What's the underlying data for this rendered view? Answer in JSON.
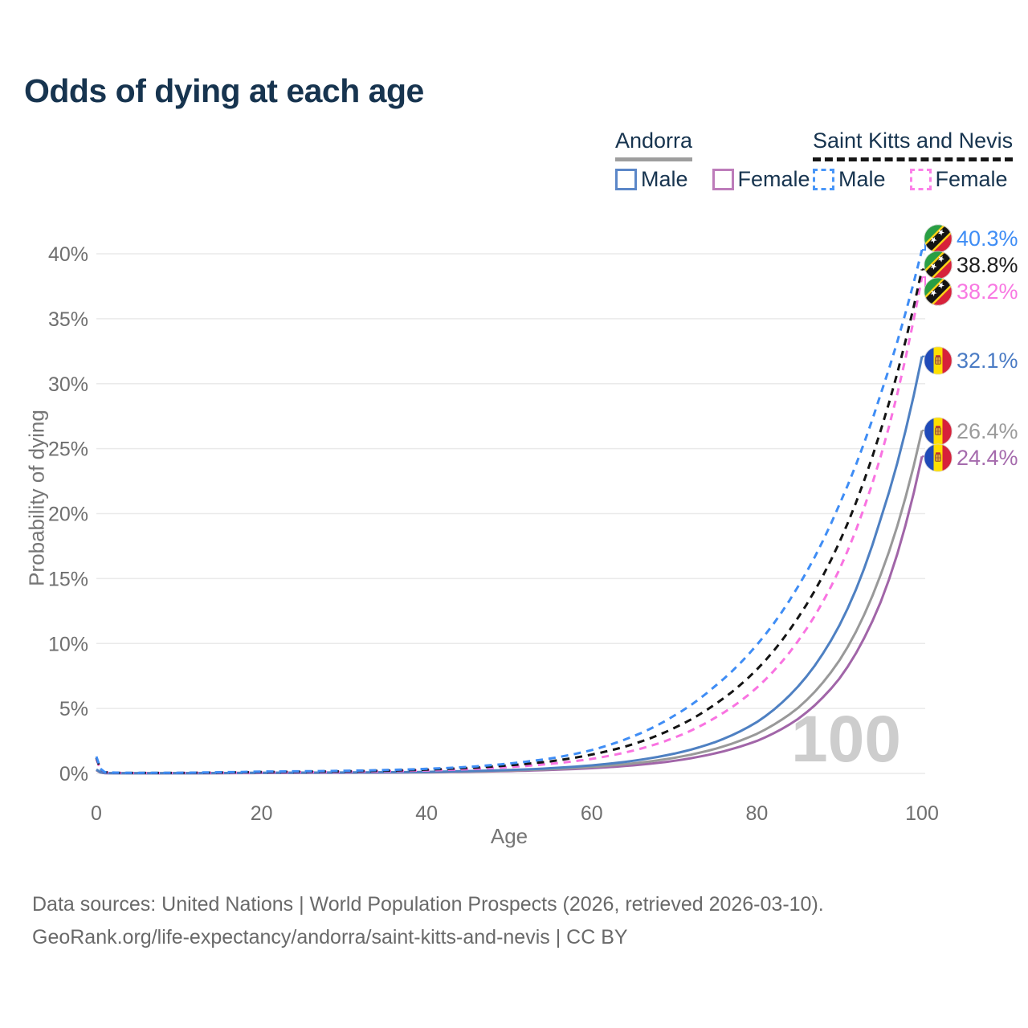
{
  "title": "Odds of dying at each age",
  "legend": {
    "groups": [
      {
        "country": "Andorra",
        "line_style": "solid",
        "underline_color": "#9e9e9e",
        "items": [
          {
            "label": "Male",
            "color": "#5b87c8"
          },
          {
            "label": "Female",
            "color": "#bd7cba"
          }
        ]
      },
      {
        "country": "Saint Kitts and Nevis",
        "line_style": "dashed",
        "underline_color": "#161616",
        "items": [
          {
            "label": "Male",
            "color": "#4896f8"
          },
          {
            "label": "Female",
            "color": "#fb80e8"
          }
        ]
      }
    ]
  },
  "chart_data": {
    "type": "line",
    "title": "Odds of dying at each age",
    "xlabel": "Age",
    "ylabel": "Probability of dying",
    "xlim": [
      0,
      100
    ],
    "ylim": [
      0,
      40
    ],
    "grid": "horizontal",
    "legend_position": "top-right",
    "watermark": "100",
    "xtick_values": [
      0,
      20,
      40,
      60,
      80,
      100
    ],
    "xtick_labels": [
      "0",
      "20",
      "40",
      "60",
      "80",
      "100"
    ],
    "ytick_values": [
      0,
      5,
      10,
      15,
      20,
      25,
      30,
      35,
      40
    ],
    "ytick_labels": [
      "0%",
      "5%",
      "10%",
      "15%",
      "20%",
      "25%",
      "30%",
      "35%",
      "40%"
    ],
    "series": [
      {
        "name": "Saint Kitts and Nevis — Male",
        "country": "Saint Kitts and Nevis",
        "sex": "Male",
        "color": "#3f8df5",
        "dashed": true,
        "end_label": "40.3%",
        "end_value": 40.3,
        "points": [
          [
            0,
            1.3
          ],
          [
            1,
            0.1
          ],
          [
            3,
            0.05
          ],
          [
            5,
            0.04
          ],
          [
            10,
            0.05
          ],
          [
            15,
            0.09
          ],
          [
            20,
            0.14
          ],
          [
            25,
            0.17
          ],
          [
            30,
            0.2
          ],
          [
            35,
            0.26
          ],
          [
            40,
            0.35
          ],
          [
            45,
            0.5
          ],
          [
            50,
            0.76
          ],
          [
            55,
            1.15
          ],
          [
            60,
            1.8
          ],
          [
            65,
            2.85
          ],
          [
            70,
            4.45
          ],
          [
            75,
            6.75
          ],
          [
            80,
            9.9
          ],
          [
            85,
            14.4
          ],
          [
            90,
            20.7
          ],
          [
            95,
            29.2
          ],
          [
            100,
            40.3
          ]
        ]
      },
      {
        "name": "Saint Kitts and Nevis — Both sexes",
        "country": "Saint Kitts and Nevis",
        "sex": "Both",
        "color": "#141414",
        "dashed": true,
        "end_label": "38.8%",
        "end_value": 38.8,
        "points": [
          [
            0,
            1.2
          ],
          [
            1,
            0.09
          ],
          [
            3,
            0.04
          ],
          [
            5,
            0.035
          ],
          [
            10,
            0.04
          ],
          [
            15,
            0.07
          ],
          [
            20,
            0.11
          ],
          [
            25,
            0.13
          ],
          [
            30,
            0.16
          ],
          [
            35,
            0.21
          ],
          [
            40,
            0.29
          ],
          [
            45,
            0.42
          ],
          [
            50,
            0.62
          ],
          [
            55,
            0.93
          ],
          [
            60,
            1.45
          ],
          [
            65,
            2.25
          ],
          [
            70,
            3.5
          ],
          [
            75,
            5.35
          ],
          [
            80,
            8.0
          ],
          [
            85,
            12.0
          ],
          [
            90,
            17.8
          ],
          [
            95,
            26.4
          ],
          [
            100,
            38.8
          ]
        ]
      },
      {
        "name": "Saint Kitts and Nevis — Female",
        "country": "Saint Kitts and Nevis",
        "sex": "Female",
        "color": "#f973e1",
        "dashed": true,
        "end_label": "38.2%",
        "end_value": 38.2,
        "points": [
          [
            0,
            1.1
          ],
          [
            1,
            0.08
          ],
          [
            3,
            0.035
          ],
          [
            5,
            0.03
          ],
          [
            10,
            0.035
          ],
          [
            15,
            0.05
          ],
          [
            20,
            0.07
          ],
          [
            25,
            0.09
          ],
          [
            30,
            0.12
          ],
          [
            35,
            0.16
          ],
          [
            40,
            0.23
          ],
          [
            45,
            0.33
          ],
          [
            50,
            0.49
          ],
          [
            55,
            0.74
          ],
          [
            60,
            1.12
          ],
          [
            65,
            1.75
          ],
          [
            70,
            2.75
          ],
          [
            75,
            4.3
          ],
          [
            80,
            6.6
          ],
          [
            85,
            10.2
          ],
          [
            90,
            15.7
          ],
          [
            95,
            24.4
          ],
          [
            100,
            38.2
          ]
        ]
      },
      {
        "name": "Andorra — Male",
        "country": "Andorra",
        "sex": "Male",
        "color": "#4e80c2",
        "dashed": false,
        "end_label": "32.1%",
        "end_value": 32.1,
        "points": [
          [
            0,
            0.3
          ],
          [
            1,
            0.03
          ],
          [
            3,
            0.015
          ],
          [
            5,
            0.012
          ],
          [
            10,
            0.015
          ],
          [
            15,
            0.03
          ],
          [
            20,
            0.05
          ],
          [
            25,
            0.06
          ],
          [
            30,
            0.07
          ],
          [
            35,
            0.09
          ],
          [
            40,
            0.12
          ],
          [
            45,
            0.18
          ],
          [
            50,
            0.26
          ],
          [
            55,
            0.4
          ],
          [
            60,
            0.62
          ],
          [
            65,
            0.97
          ],
          [
            70,
            1.52
          ],
          [
            75,
            2.42
          ],
          [
            80,
            3.95
          ],
          [
            85,
            6.7
          ],
          [
            90,
            11.4
          ],
          [
            95,
            19.6
          ],
          [
            100,
            32.1
          ]
        ]
      },
      {
        "name": "Andorra — Both sexes",
        "country": "Andorra",
        "sex": "Both",
        "color": "#999999",
        "dashed": false,
        "end_label": "26.4%",
        "end_value": 26.4,
        "points": [
          [
            0,
            0.27
          ],
          [
            1,
            0.025
          ],
          [
            3,
            0.013
          ],
          [
            5,
            0.01
          ],
          [
            10,
            0.013
          ],
          [
            15,
            0.025
          ],
          [
            20,
            0.04
          ],
          [
            25,
            0.05
          ],
          [
            30,
            0.06
          ],
          [
            35,
            0.075
          ],
          [
            40,
            0.1
          ],
          [
            45,
            0.15
          ],
          [
            50,
            0.22
          ],
          [
            55,
            0.33
          ],
          [
            60,
            0.5
          ],
          [
            65,
            0.77
          ],
          [
            70,
            1.2
          ],
          [
            75,
            1.9
          ],
          [
            80,
            3.05
          ],
          [
            85,
            5.05
          ],
          [
            90,
            8.7
          ],
          [
            95,
            15.3
          ],
          [
            100,
            26.4
          ]
        ]
      },
      {
        "name": "Andorra — Female",
        "country": "Andorra",
        "sex": "Female",
        "color": "#a165a8",
        "dashed": false,
        "end_label": "24.4%",
        "end_value": 24.4,
        "points": [
          [
            0,
            0.24
          ],
          [
            1,
            0.02
          ],
          [
            3,
            0.01
          ],
          [
            5,
            0.008
          ],
          [
            10,
            0.01
          ],
          [
            15,
            0.02
          ],
          [
            20,
            0.03
          ],
          [
            25,
            0.04
          ],
          [
            30,
            0.05
          ],
          [
            35,
            0.06
          ],
          [
            40,
            0.08
          ],
          [
            45,
            0.12
          ],
          [
            50,
            0.18
          ],
          [
            55,
            0.27
          ],
          [
            60,
            0.4
          ],
          [
            65,
            0.62
          ],
          [
            70,
            0.97
          ],
          [
            75,
            1.55
          ],
          [
            80,
            2.5
          ],
          [
            85,
            4.2
          ],
          [
            90,
            7.3
          ],
          [
            95,
            13.2
          ],
          [
            100,
            24.4
          ]
        ]
      }
    ]
  },
  "end_labels": [
    {
      "value": "40.3%",
      "flag": "saint-kitts-and-nevis",
      "color": "#3f8df5"
    },
    {
      "value": "38.8%",
      "flag": "saint-kitts-and-nevis",
      "color": "#1e1e1e"
    },
    {
      "value": "38.2%",
      "flag": "saint-kitts-and-nevis",
      "color": "#f878e2"
    },
    {
      "value": "32.1%",
      "flag": "andorra",
      "color": "#4a7bc4"
    },
    {
      "value": "26.4%",
      "flag": "andorra",
      "color": "#9b9b9b"
    },
    {
      "value": "24.4%",
      "flag": "andorra",
      "color": "#a56bad"
    }
  ],
  "footer": {
    "line1": "Data sources: United Nations | World Population Prospects (2026, retrieved 2026-03-10).",
    "line2": "GeoRank.org/life-expectancy/andorra/saint-kitts-and-nevis | CC BY"
  }
}
